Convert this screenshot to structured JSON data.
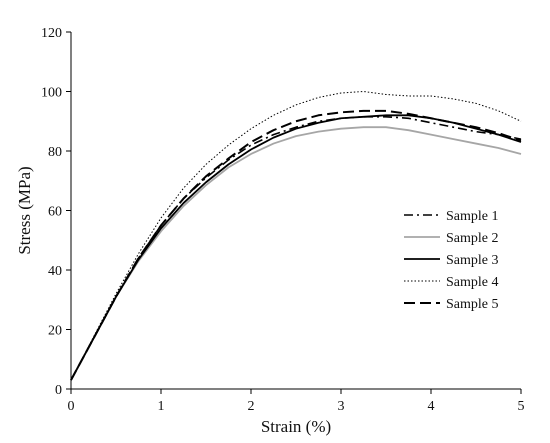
{
  "chart_data": {
    "type": "line",
    "title": "",
    "xlabel": "Strain (%)",
    "ylabel": "Stress (MPa)",
    "xlim": [
      0,
      5
    ],
    "ylim": [
      0,
      120
    ],
    "xticks": [
      0,
      1,
      2,
      3,
      4,
      5
    ],
    "yticks": [
      0,
      20,
      40,
      60,
      80,
      100,
      120
    ],
    "grid": false,
    "legend_position": "right",
    "series": [
      {
        "name": "Sample 1",
        "line_style": "dash-dot",
        "color": "#000000",
        "x": [
          0,
          0.25,
          0.5,
          0.75,
          1.0,
          1.25,
          1.5,
          1.75,
          2.0,
          2.25,
          2.5,
          2.75,
          3.0,
          3.25,
          3.5,
          3.75,
          4.0,
          4.25,
          4.5,
          4.75,
          5.0
        ],
        "y": [
          3,
          17,
          31,
          44,
          55,
          64,
          71,
          77,
          82,
          85.5,
          88,
          90,
          91,
          91.5,
          91.5,
          91,
          89.5,
          88,
          86.5,
          85.5,
          84
        ]
      },
      {
        "name": "Sample 2",
        "line_style": "solid",
        "color": "#a6a6a6",
        "x": [
          0,
          0.25,
          0.5,
          0.75,
          1.0,
          1.25,
          1.5,
          1.75,
          2.0,
          2.25,
          2.5,
          2.75,
          3.0,
          3.25,
          3.5,
          3.75,
          4.0,
          4.25,
          4.5,
          4.75,
          5.0
        ],
        "y": [
          3,
          17,
          31,
          43,
          53,
          61.5,
          68.5,
          74.5,
          79,
          82.5,
          85,
          86.5,
          87.5,
          88,
          88,
          87,
          85.5,
          84,
          82.5,
          81,
          79
        ]
      },
      {
        "name": "Sample 3",
        "line_style": "solid",
        "color": "#000000",
        "x": [
          0,
          0.25,
          0.5,
          0.75,
          1.0,
          1.25,
          1.5,
          1.75,
          2.0,
          2.25,
          2.5,
          2.75,
          3.0,
          3.25,
          3.5,
          3.75,
          4.0,
          4.25,
          4.5,
          4.75,
          5.0
        ],
        "y": [
          3,
          17,
          31,
          43.5,
          54,
          62.5,
          69.5,
          75.5,
          80.5,
          84.5,
          87.5,
          89.5,
          91,
          91.5,
          92,
          92,
          91,
          89.5,
          87.5,
          85.5,
          83
        ]
      },
      {
        "name": "Sample 4",
        "line_style": "dotted",
        "color": "#000000",
        "x": [
          0,
          0.25,
          0.5,
          0.75,
          1.0,
          1.25,
          1.5,
          1.75,
          2.0,
          2.25,
          2.5,
          2.75,
          3.0,
          3.25,
          3.5,
          3.75,
          4.0,
          4.25,
          4.5,
          4.75,
          5.0
        ],
        "y": [
          3,
          17.5,
          32,
          45.5,
          57.5,
          67.5,
          75.5,
          82,
          87.5,
          92,
          95.5,
          98,
          99.5,
          100,
          99,
          98.5,
          98.5,
          97.5,
          96,
          93.5,
          90
        ]
      },
      {
        "name": "Sample 5",
        "line_style": "long-dash",
        "color": "#000000",
        "x": [
          0,
          0.25,
          0.5,
          0.75,
          1.0,
          1.25,
          1.5,
          1.75,
          2.0,
          2.25,
          2.5,
          2.75,
          3.0,
          3.25,
          3.5,
          3.75,
          4.0,
          4.25,
          4.5,
          4.75,
          5.0
        ],
        "y": [
          3,
          17,
          31,
          44,
          55,
          64,
          71.5,
          77.5,
          83,
          87,
          90,
          92,
          93,
          93.5,
          93.5,
          92.5,
          91,
          89.5,
          88,
          86,
          83.5
        ]
      }
    ]
  }
}
